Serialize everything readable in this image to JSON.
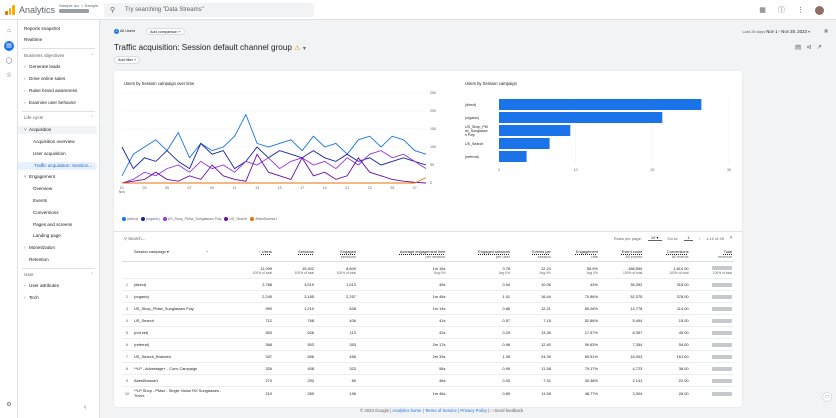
{
  "topbar": {
    "app_title": "Analytics",
    "account_line": "Sample Inc. > Sample",
    "search_placeholder": "Try searching \"Data Streams\"",
    "icons": [
      "apps-icon",
      "help-icon",
      "more-vert-icon",
      "avatar"
    ]
  },
  "sidebar": {
    "items": [
      {
        "label": "Reports snapshot"
      },
      {
        "label": "Realtime"
      },
      {
        "label": "Business objectives",
        "section": true
      },
      {
        "label": "Generate leads"
      },
      {
        "label": "Drive online sales"
      },
      {
        "label": "Raise brand awareness"
      },
      {
        "label": "Examine user behavior"
      },
      {
        "label": "Life cycle",
        "section": true
      },
      {
        "label": "Acquisition"
      },
      {
        "label": "Acquisition overview"
      },
      {
        "label": "User acquisition"
      },
      {
        "label": "Traffic acquisition: Session..."
      },
      {
        "label": "Engagement"
      },
      {
        "label": "Overview"
      },
      {
        "label": "Events"
      },
      {
        "label": "Conversions"
      },
      {
        "label": "Pages and screens"
      },
      {
        "label": "Landing page"
      },
      {
        "label": "Monetization"
      },
      {
        "label": "Retention"
      },
      {
        "label": "User",
        "section": true
      },
      {
        "label": "User attributes"
      },
      {
        "label": "Tech"
      }
    ]
  },
  "header": {
    "comparison_chip": "All Users",
    "add_comparison": "Add comparison +",
    "date_range_label": "Last 28 days",
    "date_range": "Nov 1 - Nov 28, 2023",
    "title": "Traffic acquisition: Session default channel group",
    "add_filter": "Add filter +"
  },
  "line_chart": {
    "title": "Users by Session campaign over time",
    "y_ticks": [
      "250",
      "200",
      "150",
      "100",
      "50",
      "0"
    ],
    "x_ticks": [
      "01\nNov",
      "03",
      "05",
      "07",
      "09",
      "11",
      "13",
      "15",
      "17",
      "19",
      "21",
      "23",
      "25",
      "27"
    ],
    "legend": [
      {
        "label": "(direct)",
        "color": "#1a73e8"
      },
      {
        "label": "(organic)",
        "color": "#12239e"
      },
      {
        "label": "US_Shop_PMax_Sunglasses Poly",
        "color": "#9334e6"
      },
      {
        "label": "US_Search",
        "color": "#6b0fa3"
      },
      {
        "label": "AbenBrowse1",
        "color": "#e8710a"
      }
    ]
  },
  "chart_data": [
    {
      "type": "line",
      "title": "Users by Session campaign over time",
      "x": [
        1,
        2,
        3,
        4,
        5,
        6,
        7,
        8,
        9,
        10,
        11,
        12,
        13,
        14,
        15,
        16,
        17,
        18,
        19,
        20,
        21,
        22,
        23,
        24,
        25,
        26,
        27,
        28
      ],
      "ylim": [
        0,
        250
      ],
      "series": [
        {
          "name": "(direct)",
          "values": [
            20,
            80,
            100,
            120,
            90,
            140,
            70,
            110,
            90,
            100,
            130,
            190,
            110,
            100,
            110,
            120,
            90,
            130,
            100,
            110,
            80,
            120,
            130,
            100,
            130,
            120,
            90,
            80
          ]
        },
        {
          "name": "(organic)",
          "values": [
            100,
            40,
            70,
            60,
            90,
            60,
            40,
            110,
            80,
            90,
            40,
            60,
            100,
            70,
            90,
            80,
            70,
            90,
            70,
            60,
            80,
            60,
            70,
            50,
            60,
            70,
            60,
            50
          ]
        },
        {
          "name": "US_Shop_PMax_Sunglasses Poly",
          "values": [
            0,
            10,
            30,
            20,
            40,
            50,
            30,
            60,
            40,
            50,
            30,
            60,
            50,
            70,
            40,
            60,
            70,
            50,
            60,
            40,
            70,
            50,
            80,
            90,
            70,
            80,
            60,
            40
          ]
        },
        {
          "name": "US_Search",
          "values": [
            0,
            5,
            10,
            30,
            10,
            5,
            20,
            10,
            50,
            20,
            10,
            5,
            80,
            30,
            20,
            10,
            70,
            20,
            30,
            10,
            20,
            70,
            30,
            20,
            10,
            5,
            2,
            0
          ]
        },
        {
          "name": "AbenBrowse1",
          "values": [
            0,
            0,
            0,
            0,
            0,
            0,
            0,
            0,
            0,
            0,
            0,
            0,
            0,
            0,
            0,
            0,
            0,
            0,
            0,
            0,
            0,
            0,
            0,
            0,
            0,
            0,
            0,
            15
          ]
        }
      ]
    },
    {
      "type": "bar",
      "title": "Users by Session campaign",
      "categories": [
        "(direct)",
        "(organic)",
        "US_Shop_PM...x_Sunglasse...",
        "US_Search",
        "(referral)"
      ],
      "values": [
        2788,
        2245,
        990,
        712,
        368
      ],
      "xlim": [
        0,
        30
      ],
      "x_ticks": [
        "0",
        "10",
        "20",
        "30"
      ]
    }
  ],
  "bar_chart": {
    "title": "Users by Session campaign",
    "categories": [
      "(direct)",
      "(organic)",
      "US_Shop_PM\nax_Sunglasse\ns Poly",
      "US_Search",
      "(referral)"
    ],
    "bar_fracs": [
      0.88,
      0.71,
      0.31,
      0.22,
      0.12
    ],
    "x_ticks": [
      "0",
      "10",
      "20",
      "30"
    ],
    "color": "#1a73e8"
  },
  "table": {
    "search_placeholder": "Search...",
    "rows_per_page_label": "Rows per page:",
    "rows_per_page": "10",
    "goto_label": "Go to:",
    "goto_value": "1",
    "range": "1-10 of 45",
    "dimension_header": "Session campaign",
    "columns": [
      {
        "label": "Users",
        "sub": ""
      },
      {
        "label": "Sessions",
        "sub": ""
      },
      {
        "label": "Engaged",
        "sub": "sessions"
      },
      {
        "label": "Average engagement time",
        "sub": "per session"
      },
      {
        "label": "Engaged sessions",
        "sub": "per user"
      },
      {
        "label": "Events per",
        "sub": "session"
      },
      {
        "label": "Engagement",
        "sub": "rate"
      },
      {
        "label": "Event count",
        "sub": "All events"
      },
      {
        "label": "Conversions",
        "sub": "All events"
      },
      {
        "label": "Total",
        "sub": "revenue"
      }
    ],
    "totals": [
      {
        "v": "11,099",
        "s": "100% of total"
      },
      {
        "v": "15,402",
        "s": "100% of total"
      },
      {
        "v": "8,609",
        "s": "100% of total"
      },
      {
        "v": "1m 16s",
        "s": "Avg 0%"
      },
      {
        "v": "0.78",
        "s": "Avg 0%"
      },
      {
        "v": "12.24",
        "s": "Avg 0%"
      },
      {
        "v": "55.9%",
        "s": "Avg 0%"
      },
      {
        "v": "188,590",
        "s": "100% of total"
      },
      {
        "v": "1,610.00",
        "s": "100% of total"
      },
      {
        "v": "",
        "s": "100% of total"
      }
    ],
    "rows": [
      {
        "n": "1",
        "name": "(direct)",
        "cells": [
          "2,788",
          "3,519",
          "1,513",
          "45s",
          "0.54",
          "10.06",
          "43%",
          "35,392",
          "315.00",
          ""
        ]
      },
      {
        "n": "2",
        "name": "(organic)",
        "cells": [
          "2,245",
          "3,185",
          "2,257",
          "1m 46s",
          "1.01",
          "16.44",
          "70.86%",
          "52,375",
          "378.00",
          ""
        ]
      },
      {
        "n": "3",
        "name": "US_Shop_PMax_Sunglasses Poly",
        "cells": [
          "990",
          "1,210",
          "838",
          "1m 14s",
          "0.86",
          "12.21",
          "69.26%",
          "14,778",
          "114.00",
          ""
        ]
      },
      {
        "n": "4",
        "name": "US_Search",
        "cells": [
          "712",
          "768",
          "406",
          "41s",
          "0.57",
          "7.15",
          "52.86%",
          "5,494",
          "15.00",
          ""
        ]
      },
      {
        "n": "5",
        "name": "(not set)",
        "cells": [
          "553",
          "626",
          "113",
          "42s",
          "0.20",
          "13.35",
          "17.57%",
          "8,357",
          "45.00",
          ""
        ]
      },
      {
        "n": "6",
        "name": "(referral)",
        "cells": [
          "368",
          "503",
          "353",
          "2m 17s",
          "0.96",
          "12.40",
          "59.63%",
          "7,354",
          "54.00",
          ""
        ]
      },
      {
        "n": "7",
        "name": "US_Search_Branded",
        "cells": [
          "337",
          "656",
          "456",
          "2m 33s",
          "1.35",
          "24.39",
          "69.51%",
          "16,003",
          "161.00",
          ""
        ]
      },
      {
        "n": "8",
        "name": "**LP - Advantage+ - Conv Campaign",
        "cells": [
          "326",
          "408",
          "323",
          "56s",
          "0.99",
          "11.58",
          "79.17%",
          "4,723",
          "38.00",
          ""
        ]
      },
      {
        "n": "9",
        "name": "AbenBrowse1",
        "cells": [
          "273",
          "293",
          "89",
          "46s",
          "0.33",
          "7.31",
          "30.38%",
          "2,141",
          "22.00",
          ""
        ]
      },
      {
        "n": "10",
        "name": "**LP Shop - PMax - Single Vision RX Sunglasses - Trivex",
        "cells": [
          "219",
          "289",
          "196",
          "1m 46s",
          "0.89",
          "11.59",
          "48.77%",
          "3,304",
          "26.00",
          ""
        ]
      }
    ]
  },
  "footer": {
    "copyright": "© 2023 Google |",
    "home": "Analytics home",
    "tos": "Terms of Service",
    "privacy": "Privacy Policy",
    "feedback": "Send feedback"
  }
}
